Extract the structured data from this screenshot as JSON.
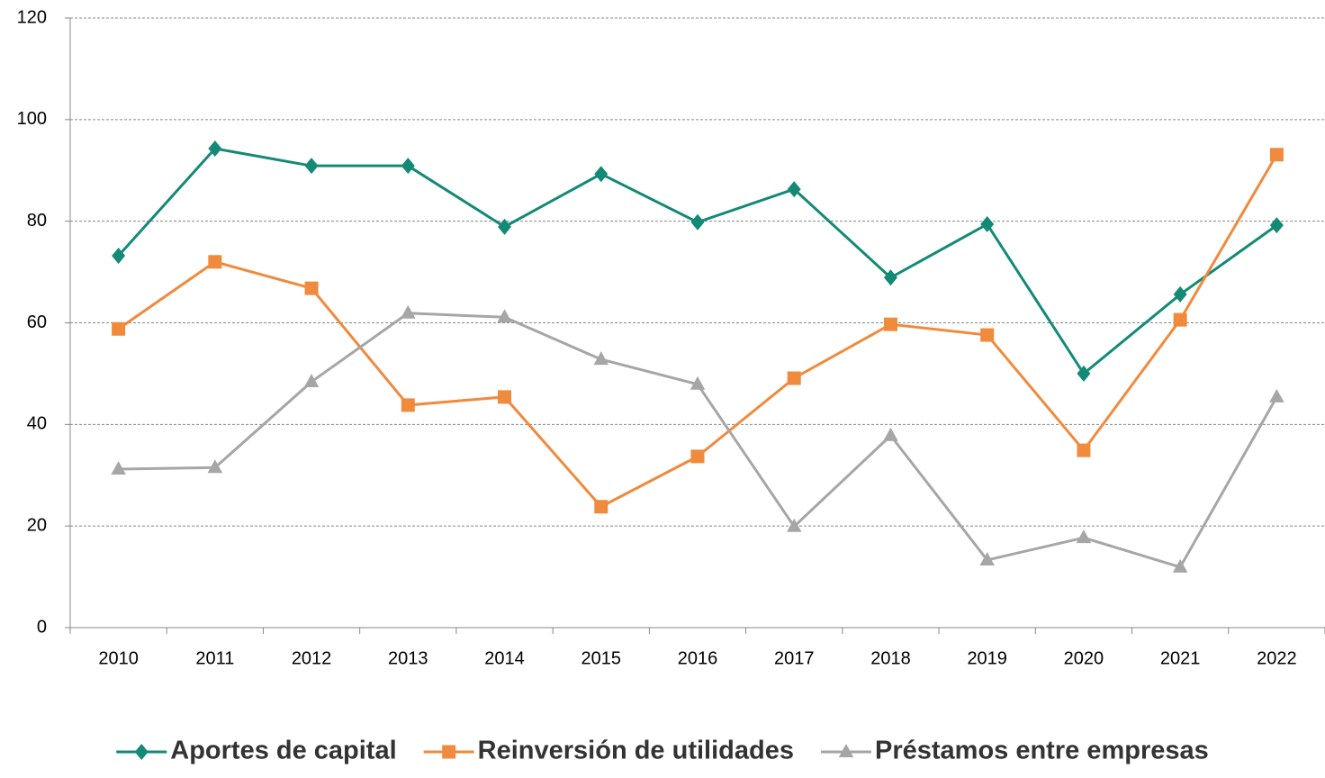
{
  "chart_data": {
    "type": "line",
    "categories": [
      "2010",
      "2011",
      "2012",
      "2013",
      "2014",
      "2015",
      "2016",
      "2017",
      "2018",
      "2019",
      "2020",
      "2021",
      "2022"
    ],
    "series": [
      {
        "name": "Aportes de capital",
        "color": "#138a76",
        "marker": "diamond",
        "values": [
          73.2,
          94.3,
          90.9,
          90.9,
          78.9,
          89.3,
          79.8,
          86.3,
          68.9,
          79.4,
          50.0,
          65.6,
          79.2
        ]
      },
      {
        "name": "Reinversión de utilidades",
        "color": "#f08a3c",
        "marker": "square",
        "values": [
          58.8,
          72.0,
          66.8,
          43.8,
          45.4,
          23.8,
          33.7,
          49.1,
          59.7,
          57.6,
          34.9,
          60.6,
          93.1
        ]
      },
      {
        "name": "Préstamos entre empresas",
        "color": "#a6a6a6",
        "marker": "triangle",
        "values": [
          31.2,
          31.5,
          48.4,
          61.9,
          61.1,
          52.8,
          47.9,
          19.9,
          37.8,
          13.3,
          17.7,
          11.9,
          45.4
        ]
      }
    ],
    "ylim": [
      0,
      120
    ],
    "yticks": [
      0,
      20,
      40,
      60,
      80,
      100,
      120
    ],
    "grid": true,
    "legend": "bottom"
  }
}
